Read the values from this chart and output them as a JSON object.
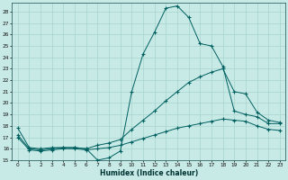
{
  "xlabel": "Humidex (Indice chaleur)",
  "background_color": "#c8eae6",
  "line_color": "#006060",
  "grid_color": "#a8d4ce",
  "xlim": [
    -0.5,
    23.5
  ],
  "ylim": [
    15,
    28.8
  ],
  "yticks": [
    15,
    16,
    17,
    18,
    19,
    20,
    21,
    22,
    23,
    24,
    25,
    26,
    27,
    28
  ],
  "xticks": [
    0,
    1,
    2,
    3,
    4,
    5,
    6,
    7,
    8,
    9,
    10,
    11,
    12,
    13,
    14,
    15,
    16,
    17,
    18,
    19,
    20,
    21,
    22,
    23
  ],
  "line1_x": [
    0,
    1,
    2,
    3,
    4,
    5,
    6,
    7,
    8,
    9,
    10,
    11,
    12,
    13,
    14,
    15,
    16,
    17,
    18,
    19,
    20,
    21,
    22,
    23
  ],
  "line1_y": [
    17.8,
    16.1,
    16.0,
    16.1,
    16.1,
    16.1,
    16.0,
    15.0,
    15.2,
    15.8,
    21.0,
    24.3,
    26.2,
    28.3,
    28.5,
    27.5,
    25.2,
    25.0,
    23.2,
    19.3,
    19.0,
    18.8,
    18.2,
    18.2
  ],
  "line2_x": [
    0,
    1,
    2,
    3,
    4,
    5,
    6,
    7,
    8,
    9,
    10,
    11,
    12,
    13,
    14,
    15,
    16,
    17,
    18,
    19,
    20,
    21,
    22,
    23
  ],
  "line2_y": [
    17.2,
    16.0,
    15.9,
    16.0,
    16.1,
    16.1,
    16.0,
    16.3,
    16.5,
    16.8,
    17.7,
    18.5,
    19.3,
    20.2,
    21.0,
    21.8,
    22.3,
    22.7,
    23.0,
    21.0,
    20.8,
    19.2,
    18.5,
    18.3
  ],
  "line3_x": [
    0,
    1,
    2,
    3,
    4,
    5,
    6,
    7,
    8,
    9,
    10,
    11,
    12,
    13,
    14,
    15,
    16,
    17,
    18,
    19,
    20,
    21,
    22,
    23
  ],
  "line3_y": [
    17.0,
    15.9,
    15.8,
    15.9,
    16.0,
    16.0,
    15.9,
    16.0,
    16.1,
    16.3,
    16.6,
    16.9,
    17.2,
    17.5,
    17.8,
    18.0,
    18.2,
    18.4,
    18.6,
    18.5,
    18.4,
    18.0,
    17.7,
    17.6
  ]
}
